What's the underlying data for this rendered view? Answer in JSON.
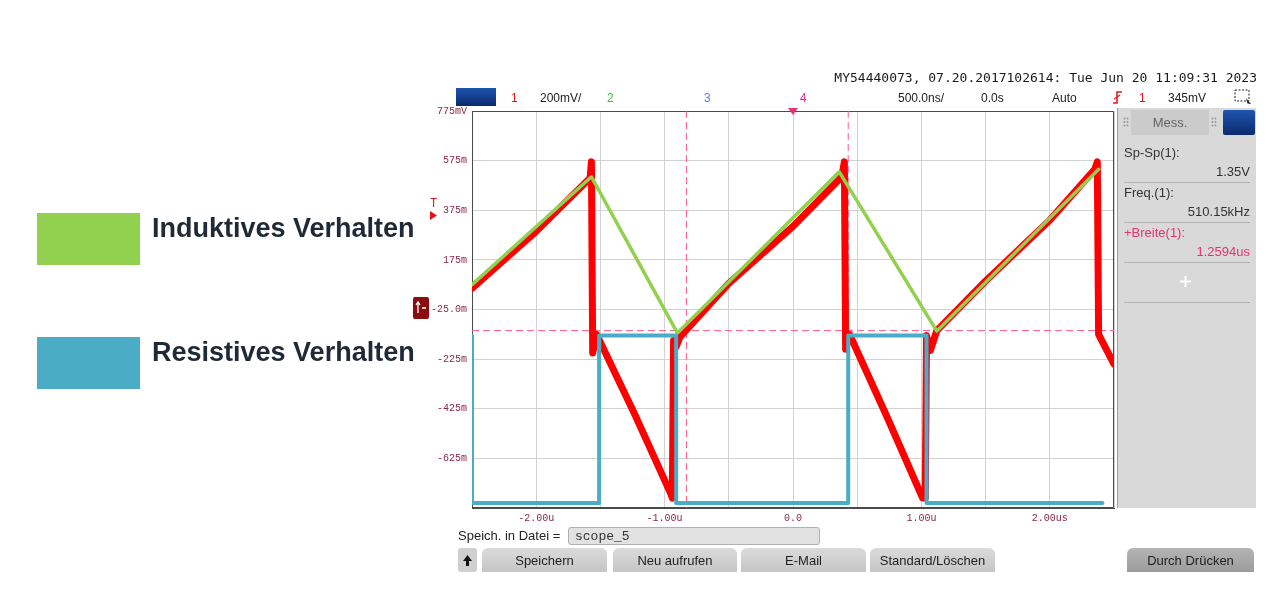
{
  "chart_data": {
    "type": "line",
    "xlim": [
      -2.5,
      2.5
    ],
    "xticks": [
      {
        "value": -2.5,
        "label": null
      },
      {
        "value": -2,
        "label": "-2.00u"
      },
      {
        "value": -1.5,
        "label": null
      },
      {
        "value": -1,
        "label": "-1.00u"
      },
      {
        "value": -0.5,
        "label": null
      },
      {
        "value": 0,
        "label": "0.0"
      },
      {
        "value": 0.5,
        "label": null
      },
      {
        "value": 1,
        "label": "1.00u"
      },
      {
        "value": 1.5,
        "label": null
      },
      {
        "value": 2,
        "label": "2.00us"
      },
      {
        "value": 2.5,
        "label": null
      }
    ],
    "ylim": [
      -825,
      775
    ],
    "yticks": [
      {
        "value": -825,
        "label": null
      },
      {
        "value": -625,
        "label": "-625m"
      },
      {
        "value": -425,
        "label": "-425m"
      },
      {
        "value": -225,
        "label": "-225m"
      },
      {
        "value": -25,
        "label": "-25.0m"
      },
      {
        "value": 175,
        "label": "175m"
      },
      {
        "value": 375,
        "label": "375m"
      },
      {
        "value": 575,
        "label": "575m"
      },
      {
        "value": 775,
        "label": "775mV"
      }
    ],
    "grid": true,
    "legend": "left",
    "marker": "none",
    "series": [
      {
        "color": "#ff0000",
        "x": [
          -2.5,
          -2.0,
          -1.58,
          -1.57,
          -1.56,
          -1.53,
          -1.23,
          -0.95,
          -0.94,
          -0.93,
          -0.91,
          -0.88,
          -0.5,
          0,
          0.38,
          0.4,
          0.41,
          0.44,
          0.73,
          1.01,
          1.03,
          1.04,
          1.07,
          1.12,
          1.5,
          2.0,
          2.35,
          2.37,
          2.38,
          2.5
        ],
        "values": [
          60,
          290,
          505,
          570,
          -200,
          -125,
          -450,
          -770,
          -785,
          -150,
          -175,
          -135,
          80,
          310,
          510,
          570,
          -185,
          -125,
          -455,
          -785,
          -785,
          -130,
          -190,
          -110,
          90,
          335,
          540,
          570,
          -125,
          -245
        ]
      },
      {
        "name": "Induktives Verhalten",
        "color": "#92d050",
        "x": [
          -2.5,
          -1.57,
          -0.9,
          0.36,
          1.12,
          2.38
        ],
        "values": [
          75,
          510,
          -120,
          530,
          -112,
          540
        ]
      },
      {
        "name": "Resistives Verhalten",
        "type": "step",
        "color": "#4bacc6",
        "x": [
          -2.5,
          -1.51,
          -0.91,
          0.43,
          1.04,
          2.41
        ],
        "values": [
          -130,
          -805,
          -130,
          -805,
          -130,
          -805
        ]
      }
    ],
    "ref_lines": [
      {
        "axis": "x",
        "value": -0.83,
        "color": "#ff5c8a",
        "line_style": "dashed"
      },
      {
        "axis": "x",
        "value": 0.43,
        "color": "#ff5c8a",
        "line_style": "dashed"
      },
      {
        "axis": "y",
        "value": -110,
        "color": "#ff5c8a",
        "line_style": "dashed"
      }
    ],
    "annotations": [
      "MY54440073, 07.20.2017102614: Tue Jun 20 11:09:31 2023",
      "1",
      "200mV/",
      "2",
      "3",
      "4",
      "500.0ns/",
      "0.0s",
      "Auto",
      "1",
      "345mV",
      "T",
      "Mess.",
      "Sp-Sp(1):",
      "1.35V",
      "Freq.(1):",
      "510.15kHz",
      "+Breite(1):",
      "1.2594us",
      "Speich. in Datei =",
      "scope_5",
      "Speichern",
      "Neu aufrufen",
      "E-Mail",
      "Standard/Löschen",
      "Durch Drücken"
    ]
  }
}
